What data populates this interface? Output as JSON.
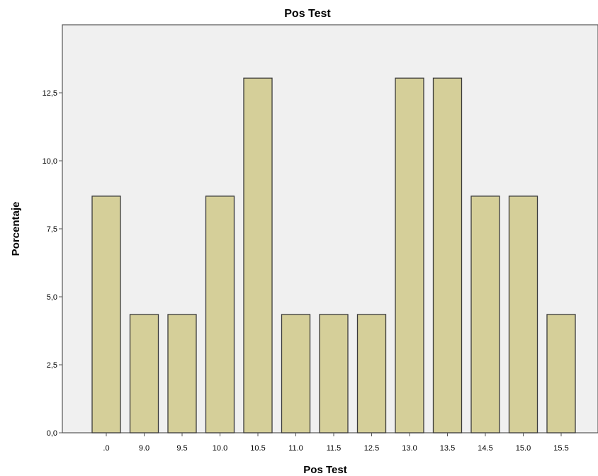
{
  "chart_data": {
    "type": "bar",
    "title": "Pos Test",
    "xlabel": "Pos Test",
    "ylabel": "Porcentaje",
    "categories": [
      ".0",
      "9.0",
      "9.5",
      "10.0",
      "10.5",
      "11.0",
      "11.5",
      "12.5",
      "13.0",
      "13.5",
      "14.5",
      "15.0",
      "15.5"
    ],
    "values": [
      8.7,
      4.35,
      4.35,
      8.7,
      13.04,
      4.35,
      4.35,
      4.35,
      13.04,
      13.04,
      8.7,
      8.7,
      4.35
    ],
    "ylim": [
      0,
      15
    ],
    "yticks": [
      0,
      2.5,
      5,
      7.5,
      10,
      12.5
    ],
    "ytick_labels": [
      "0,0",
      "2,5",
      "5,0",
      "7,5",
      "10,0",
      "12,5"
    ],
    "grid": false,
    "colors": {
      "plot_background": "#f0f0f0",
      "bar_fill": "#d5cf99",
      "bar_stroke": "#3a3a3a"
    }
  }
}
